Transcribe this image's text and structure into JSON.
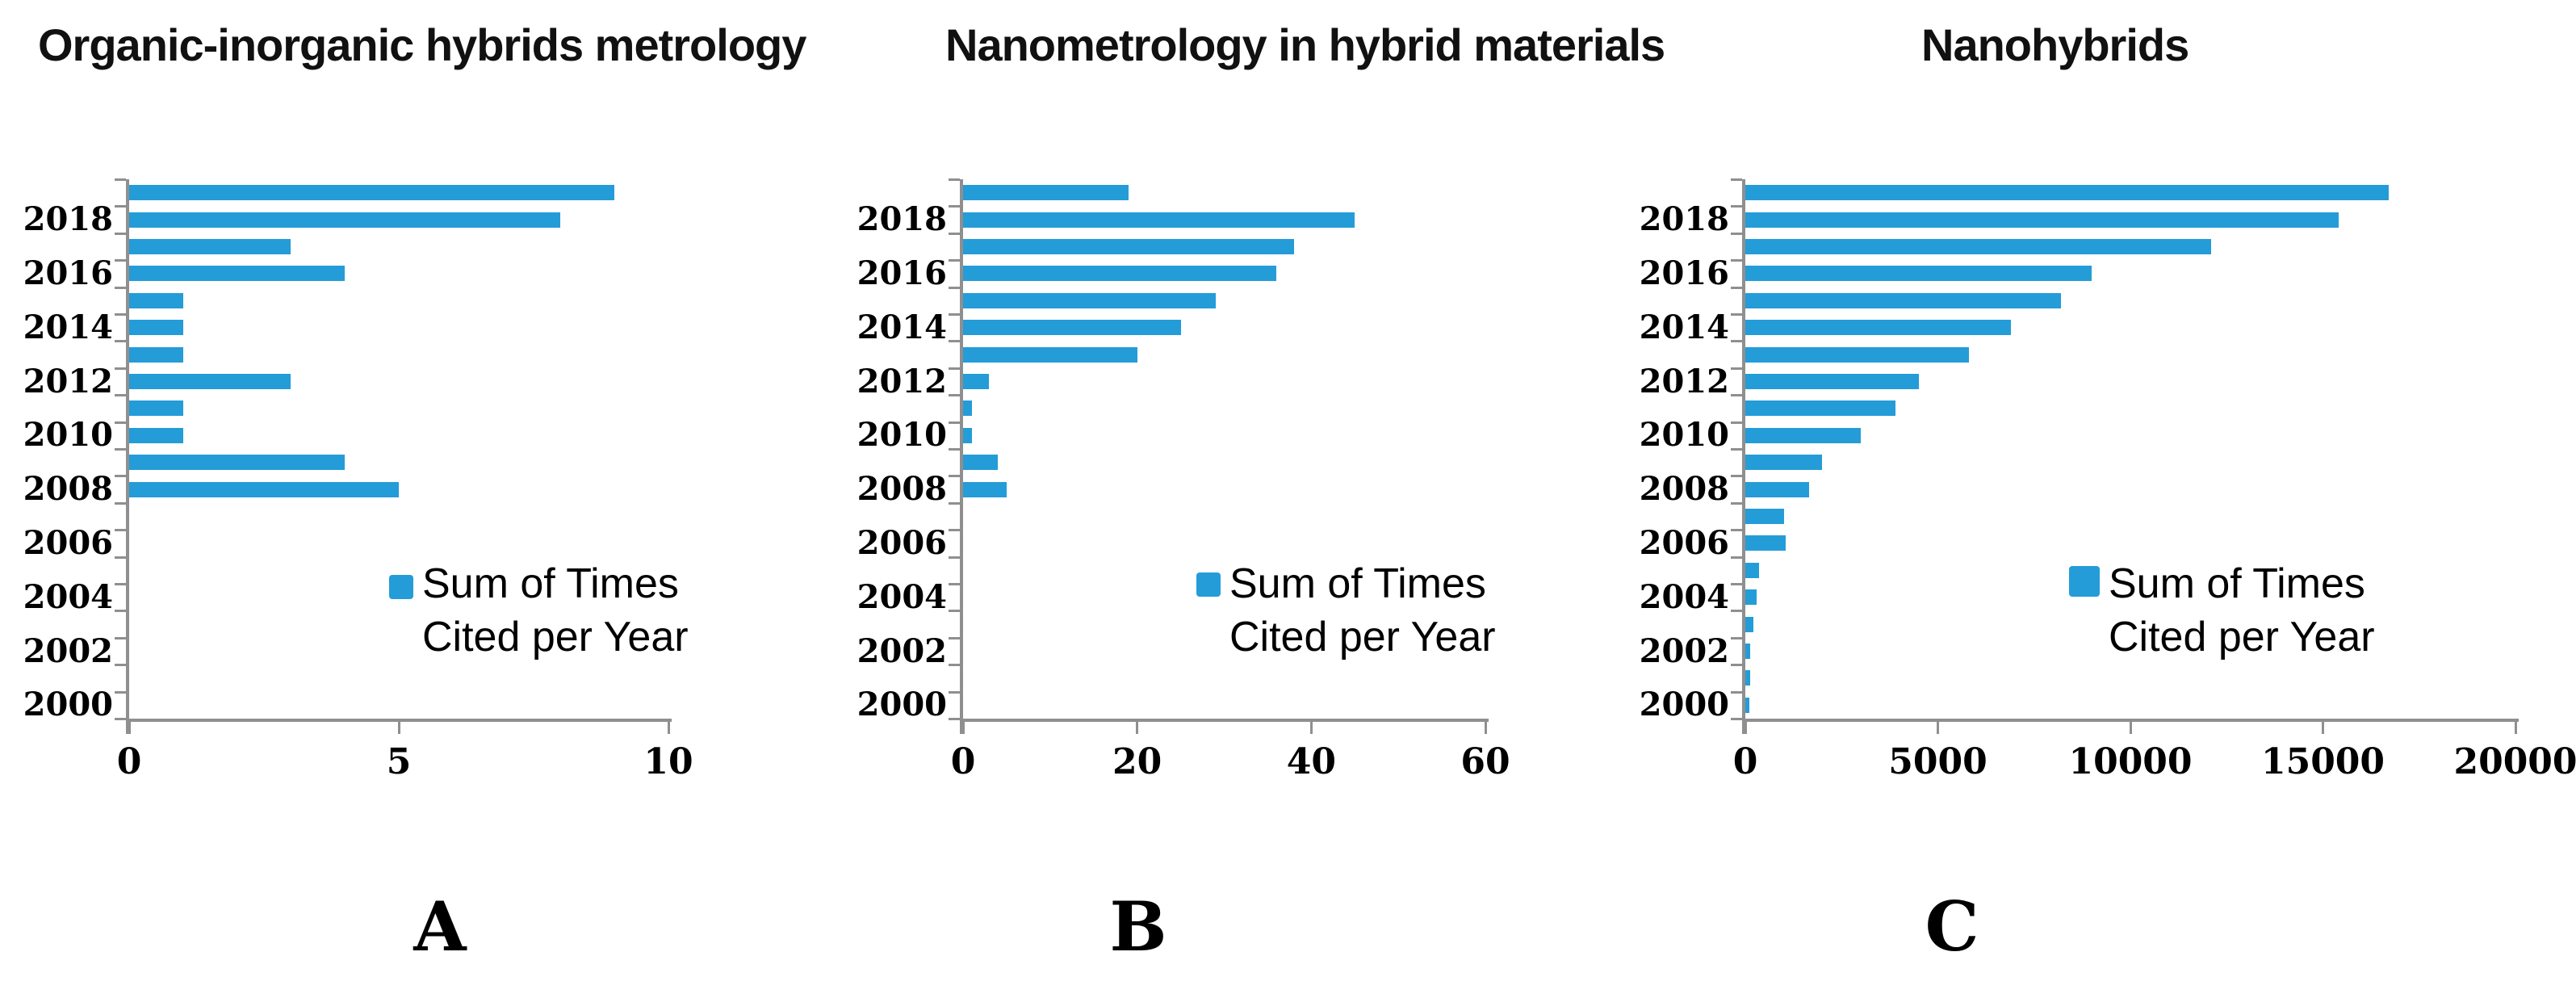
{
  "figure": {
    "panel_letters": [
      "A",
      "B",
      "C"
    ]
  },
  "legend": {
    "line1": "Sum of Times",
    "line2": "Cited per Year"
  },
  "colors": {
    "bar": "#249CD8",
    "axis": "#8F8F8F",
    "text": "#000000",
    "title": "#111111"
  },
  "chart_data": [
    {
      "type": "bar",
      "orientation": "horizontal",
      "panel_label": "A",
      "title": "Organic-inorganic hybrids metrology",
      "legend": "Sum of Times Cited per Year",
      "categories": [
        "2019",
        "2018",
        "2017",
        "2016",
        "2015",
        "2014",
        "2013",
        "2012",
        "2011",
        "2010",
        "2009",
        "2008",
        "2007",
        "2006",
        "2005",
        "2004",
        "2003",
        "2002",
        "2001",
        "2000"
      ],
      "values": [
        9,
        8,
        3,
        4,
        1,
        1,
        1,
        3,
        1,
        1,
        4,
        5,
        0,
        0,
        0,
        0,
        0,
        0,
        0,
        0
      ],
      "xlim": [
        0,
        10
      ],
      "xticks": [
        0,
        5,
        10
      ],
      "ytick_labels": [
        "2018",
        "2016",
        "2014",
        "2012",
        "2010",
        "2008",
        "2006",
        "2004",
        "2002",
        "2000"
      ],
      "grid": false,
      "legend_position": "inside-lower-right"
    },
    {
      "type": "bar",
      "orientation": "horizontal",
      "panel_label": "B",
      "title": "Nanometrology in hybrid materials",
      "legend": "Sum of Times Cited per Year",
      "categories": [
        "2019",
        "2018",
        "2017",
        "2016",
        "2015",
        "2014",
        "2013",
        "2012",
        "2011",
        "2010",
        "2009",
        "2008",
        "2007",
        "2006",
        "2005",
        "2004",
        "2003",
        "2002",
        "2001",
        "2000"
      ],
      "values": [
        19,
        45,
        38,
        36,
        29,
        25,
        20,
        3,
        1,
        1,
        4,
        5,
        0,
        0,
        0,
        0,
        0,
        0,
        0,
        0
      ],
      "xlim": [
        0,
        60
      ],
      "xticks": [
        0,
        20,
        40,
        60
      ],
      "ytick_labels": [
        "2018",
        "2016",
        "2014",
        "2012",
        "2010",
        "2008",
        "2006",
        "2004",
        "2002",
        "2000"
      ],
      "grid": false,
      "legend_position": "inside-lower-right"
    },
    {
      "type": "bar",
      "orientation": "horizontal",
      "panel_label": "C",
      "title": "Nanohybrids",
      "legend": "Sum of Times Cited per Year",
      "categories": [
        "2019",
        "2018",
        "2017",
        "2016",
        "2015",
        "2014",
        "2013",
        "2012",
        "2011",
        "2010",
        "2009",
        "2008",
        "2007",
        "2006",
        "2005",
        "2004",
        "2003",
        "2002",
        "2001",
        "2000"
      ],
      "values": [
        16700,
        15400,
        12100,
        9000,
        8200,
        6900,
        5800,
        4500,
        3900,
        3000,
        2000,
        1650,
        1000,
        1050,
        350,
        300,
        200,
        130,
        130,
        100
      ],
      "xlim": [
        0,
        20000
      ],
      "xticks": [
        0,
        5000,
        10000,
        15000,
        20000
      ],
      "ytick_labels": [
        "2018",
        "2016",
        "2014",
        "2012",
        "2010",
        "2008",
        "2006",
        "2004",
        "2002",
        "2000"
      ],
      "grid": false,
      "legend_position": "inside-lower-right"
    }
  ]
}
